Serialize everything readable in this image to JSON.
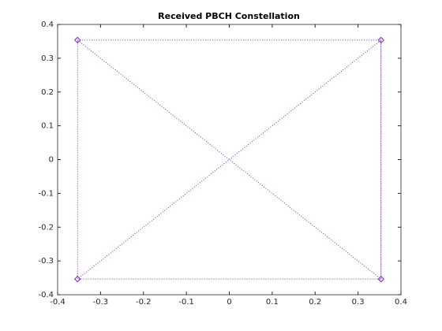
{
  "chart_data": {
    "type": "line",
    "title": "Received PBCH Constellation",
    "x": [
      -0.3536,
      0.3536,
      0.3536,
      -0.3536,
      -0.3536,
      0.3536,
      0.3536,
      -0.3536
    ],
    "series": [
      {
        "color": "#7b2fbe",
        "values": [
          0.3536,
          0.3536,
          -0.3536,
          0.3536,
          -0.3536,
          -0.3536,
          0.3536,
          -0.3536
        ]
      }
    ],
    "xlim": [
      -0.4,
      0.4
    ],
    "xticks": [
      -0.4,
      -0.3,
      -0.2,
      -0.1,
      0,
      0.1,
      0.2,
      0.3,
      0.4
    ],
    "ylim": [
      -0.4,
      0.4
    ],
    "yticks": [
      -0.4,
      -0.3,
      -0.2,
      -0.1,
      0,
      0.1,
      0.2,
      0.3,
      0.4
    ],
    "line_style": "dotted",
    "marker": "diamond",
    "grid": false
  }
}
